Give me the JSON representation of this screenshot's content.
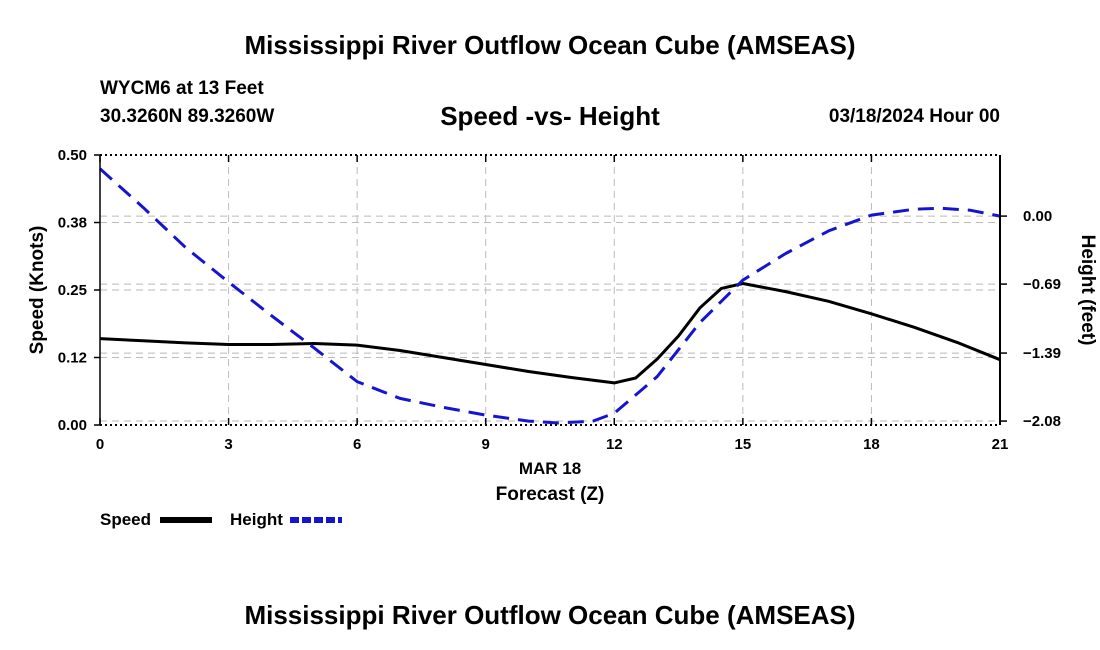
{
  "header": {
    "title": "Mississippi River Outflow Ocean Cube (AMSEAS)",
    "station": "WYCM6 at 13 Feet",
    "coords": "30.3260N  89.3260W",
    "chart_title": "Speed -vs- Height",
    "datetime": "03/18/2024 Hour 00"
  },
  "footer": {
    "title": "Mississippi River Outflow Ocean Cube (AMSEAS)"
  },
  "colors": {
    "speed": "#000000",
    "height": "#1515d0",
    "grid": "#bbbbbb"
  },
  "chart_data": {
    "type": "line",
    "xlabel": "Forecast (Z)",
    "xsublabel": "MAR 18",
    "xlim": [
      0,
      21
    ],
    "x_ticks": [
      0,
      3,
      6,
      9,
      12,
      15,
      18,
      21
    ],
    "ylabel": "Speed (Knots)",
    "ylim": [
      0,
      0.5
    ],
    "y_ticks": [
      0.0,
      0.125,
      0.25,
      0.375,
      0.5
    ],
    "y_tick_labels": [
      "0.00",
      "0.12",
      "0.25",
      "0.38",
      "0.50"
    ],
    "y2label": "Height (feet)",
    "y2lim": [
      -2.12,
      0.62
    ],
    "y2_ticks": [
      0.0,
      -0.69,
      -1.39,
      -2.08
    ],
    "y2_tick_labels": [
      "0.00",
      "-0.69",
      "-1.39",
      "-2.08"
    ],
    "series": [
      {
        "name": "Speed",
        "axis": "left",
        "style": "solid",
        "x": [
          0,
          1,
          2,
          3,
          4,
          5,
          6,
          7,
          8,
          9,
          10,
          11,
          12,
          12.5,
          13,
          13.5,
          14,
          14.5,
          15,
          16,
          17,
          18,
          19,
          20,
          21
        ],
        "values": [
          0.16,
          0.156,
          0.152,
          0.149,
          0.149,
          0.151,
          0.148,
          0.138,
          0.125,
          0.112,
          0.099,
          0.088,
          0.078,
          0.087,
          0.122,
          0.165,
          0.217,
          0.253,
          0.262,
          0.247,
          0.229,
          0.206,
          0.181,
          0.153,
          0.121
        ]
      },
      {
        "name": "Height",
        "axis": "right",
        "style": "dashed",
        "x": [
          0,
          1,
          2,
          3,
          4,
          5,
          6,
          7,
          8,
          9,
          10,
          10.7,
          11.5,
          12,
          13,
          14,
          15,
          16,
          17,
          18,
          19,
          19.6,
          20.3,
          21
        ],
        "values": [
          0.48,
          0.09,
          -0.32,
          -0.67,
          -1.01,
          -1.34,
          -1.68,
          -1.85,
          -1.94,
          -2.02,
          -2.08,
          -2.1,
          -2.08,
          -2.0,
          -1.63,
          -1.08,
          -0.65,
          -0.38,
          -0.15,
          0.01,
          0.07,
          0.08,
          0.06,
          0.0
        ]
      }
    ],
    "legend": [
      {
        "label": "Speed",
        "series": "Speed"
      },
      {
        "label": "Height",
        "series": "Height"
      }
    ],
    "legend_position": "bottom-left"
  }
}
